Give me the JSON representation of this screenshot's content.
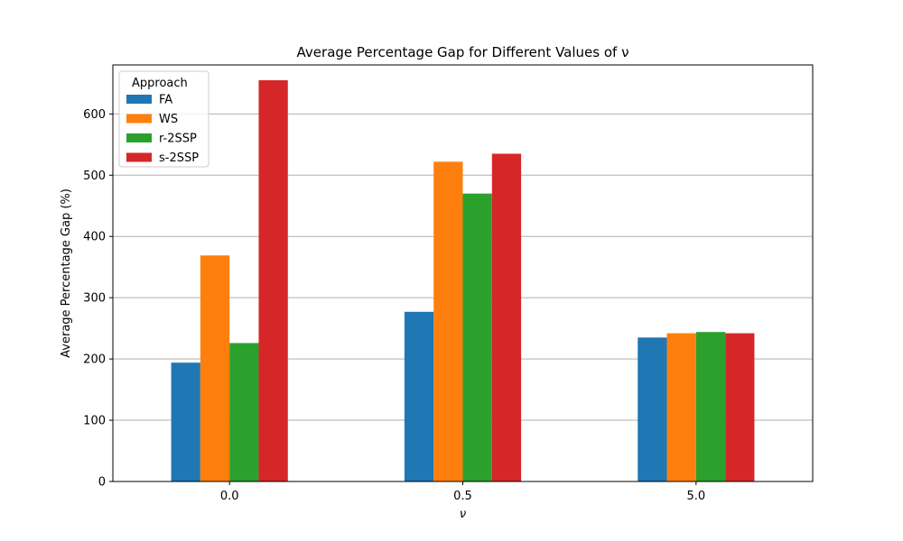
{
  "chart_data": {
    "type": "bar",
    "title": "Average Percentage Gap for Different Values of ν",
    "xlabel": "ν",
    "ylabel": "Average Percentage Gap (%)",
    "categories": [
      "0.0",
      "0.5",
      "5.0"
    ],
    "ylim": [
      0,
      680
    ],
    "yticks": [
      0,
      100,
      200,
      300,
      400,
      500,
      600
    ],
    "grid": "y",
    "legend": {
      "title": "Approach",
      "position": "top-left"
    },
    "series": [
      {
        "name": "FA",
        "color": "#1f77b4",
        "values": [
          194,
          277,
          235
        ]
      },
      {
        "name": "WS",
        "color": "#ff7f0e",
        "values": [
          369,
          522,
          242
        ]
      },
      {
        "name": "r-2SSP",
        "color": "#2ca02c",
        "values": [
          226,
          470,
          244
        ]
      },
      {
        "name": "s-2SSP",
        "color": "#d62728",
        "values": [
          655,
          535,
          242
        ]
      }
    ]
  }
}
